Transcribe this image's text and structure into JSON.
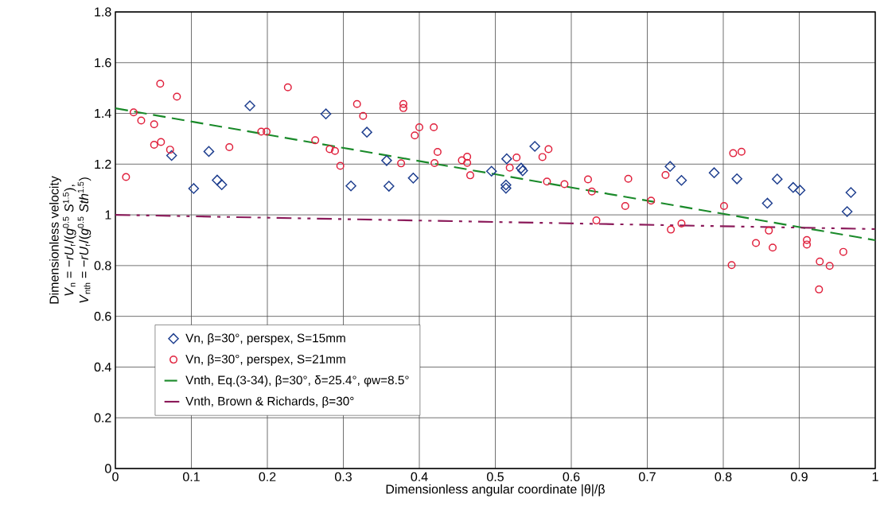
{
  "chart_data": {
    "type": "scatter",
    "xlabel": "Dimensionless angular coordinate |θ|/β",
    "ylabel": [
      "Dimensionless velocity",
      "*V*$_{n}$ = −*rU*$_{r}$/(*g*$^{0.5}$ *S*$^{1.5}$),",
      "*V*$_{nth}$ = −*rU*$_{r}$/(*g*$^{0.5}$ *Sth*$^{1.5}$)"
    ],
    "series": [
      {
        "name": "Vn, β=30°, perspex, S=15mm",
        "type": "scatter",
        "marker": "diamond",
        "color": "#1f3f8f",
        "x": [
          0.074,
          0.103,
          0.123,
          0.134,
          0.14,
          0.177,
          0.277,
          0.31,
          0.331,
          0.357,
          0.36,
          0.392,
          0.495,
          0.515,
          0.514,
          0.514,
          0.534,
          0.536,
          0.552,
          0.73,
          0.745,
          0.788,
          0.818,
          0.858,
          0.871,
          0.892,
          0.901,
          0.968,
          0.963
        ],
        "values": [
          1.234,
          1.104,
          1.25,
          1.137,
          1.119,
          1.43,
          1.398,
          1.114,
          1.326,
          1.214,
          1.113,
          1.145,
          1.172,
          1.221,
          1.118,
          1.105,
          1.184,
          1.174,
          1.27,
          1.191,
          1.136,
          1.166,
          1.142,
          1.046,
          1.141,
          1.108,
          1.097,
          1.088,
          1.013
        ]
      },
      {
        "name": "Vn, β=30°, perspex, S=21mm",
        "type": "scatter",
        "marker": "circle",
        "color": "#e0203c",
        "x": [
          0.014,
          0.024,
          0.034,
          0.051,
          0.059,
          0.051,
          0.06,
          0.072,
          0.081,
          0.15,
          0.227,
          0.192,
          0.199,
          0.263,
          0.282,
          0.289,
          0.296,
          0.318,
          0.326,
          0.376,
          0.379,
          0.379,
          0.394,
          0.4,
          0.419,
          0.424,
          0.42,
          0.456,
          0.463,
          0.463,
          0.467,
          0.519,
          0.528,
          0.562,
          0.57,
          0.568,
          0.591,
          0.622,
          0.627,
          0.633,
          0.675,
          0.671,
          0.705,
          0.724,
          0.731,
          0.745,
          0.801,
          0.813,
          0.824,
          0.811,
          0.843,
          0.86,
          0.865,
          0.91,
          0.91,
          0.927,
          0.94,
          0.926,
          0.958
        ],
        "values": [
          1.149,
          1.404,
          1.372,
          1.357,
          1.517,
          1.276,
          1.287,
          1.257,
          1.466,
          1.267,
          1.503,
          1.328,
          1.328,
          1.294,
          1.259,
          1.252,
          1.193,
          1.437,
          1.39,
          1.203,
          1.437,
          1.421,
          1.313,
          1.345,
          1.345,
          1.248,
          1.204,
          1.215,
          1.229,
          1.205,
          1.156,
          1.186,
          1.226,
          1.228,
          1.259,
          1.131,
          1.121,
          1.14,
          1.092,
          0.978,
          1.142,
          1.035,
          1.056,
          1.157,
          0.942,
          0.966,
          1.035,
          1.243,
          1.249,
          0.802,
          0.889,
          0.938,
          0.871,
          0.901,
          0.883,
          0.816,
          0.799,
          0.706,
          0.854
        ]
      },
      {
        "name": "Vnth, Eq.(3-34), β=30°, δ=25.4°, φw=8.5°",
        "type": "line",
        "marker": "none",
        "line_style": "dashed",
        "color": "#1a8a2a",
        "x": [
          0,
          1
        ],
        "values": [
          1.42,
          0.9
        ]
      },
      {
        "name": "Vnth, Brown & Richards, β=30°",
        "type": "line",
        "marker": "none",
        "line_style": "dashdot",
        "color": "#8b1a5a",
        "x": [
          0,
          1
        ],
        "values": [
          1.0,
          0.944
        ]
      }
    ],
    "xlim": [
      0,
      1
    ],
    "ylim": [
      0,
      1.8
    ],
    "xticks": [
      0,
      0.1,
      0.2,
      0.3,
      0.4,
      0.5,
      0.6,
      0.7,
      0.8,
      0.9,
      1
    ],
    "yticks": [
      0,
      0.2,
      0.4,
      0.6,
      0.8,
      1,
      1.2,
      1.4,
      1.6,
      1.8
    ],
    "grid": true,
    "legend": "bottom left"
  }
}
